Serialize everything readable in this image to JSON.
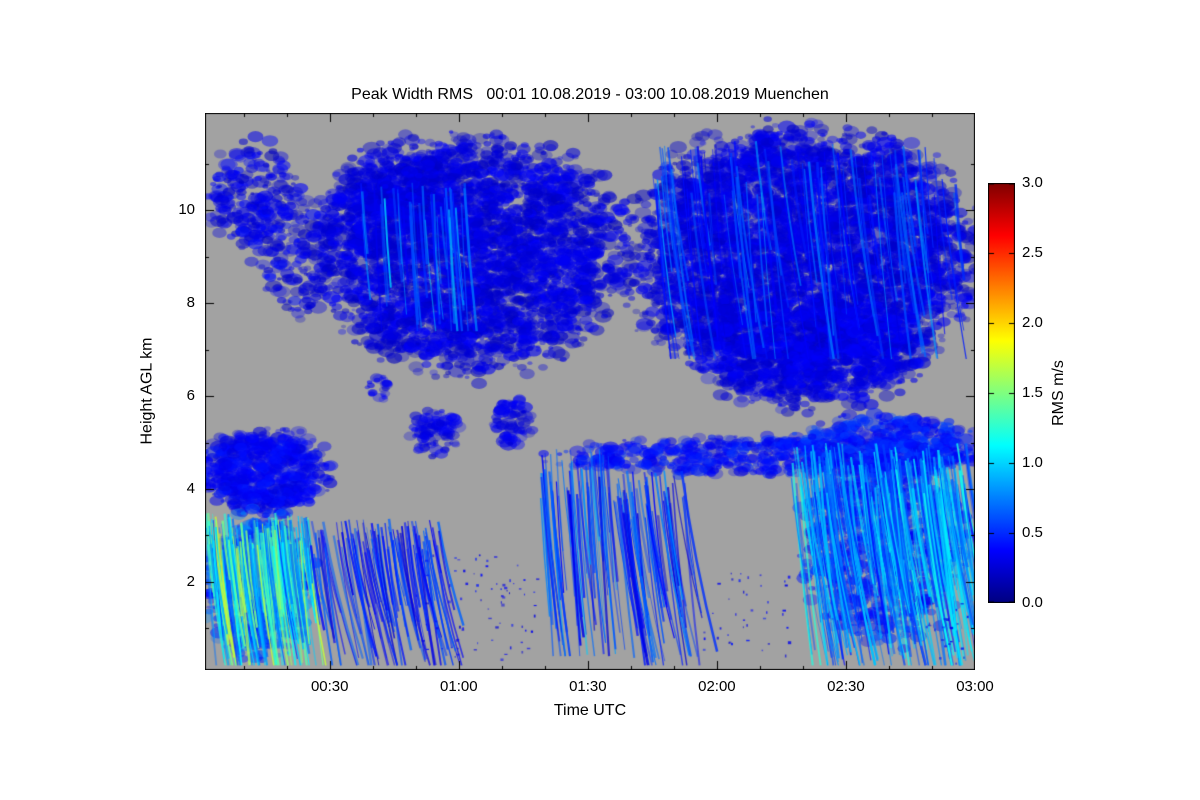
{
  "page": {
    "background": "#ffffff",
    "axis_color": "#000000"
  },
  "chart_data": {
    "type": "heatmap",
    "title": "Peak Width RMS   00:01 10.08.2019 - 03:00 10.08.2019 Muenchen",
    "xlabel": "Time UTC",
    "ylabel": "Height AGL km",
    "x_range_minutes": [
      1,
      180
    ],
    "x_ticks": [
      {
        "t": 30,
        "label": "00:30"
      },
      {
        "t": 60,
        "label": "01:00"
      },
      {
        "t": 90,
        "label": "01:30"
      },
      {
        "t": 120,
        "label": "02:00"
      },
      {
        "t": 150,
        "label": "02:30"
      },
      {
        "t": 180,
        "label": "03:00"
      }
    ],
    "y_range_km": [
      0.1,
      12.1
    ],
    "y_ticks": [
      {
        "h": 2,
        "label": "2"
      },
      {
        "h": 4,
        "label": "4"
      },
      {
        "h": 6,
        "label": "6"
      },
      {
        "h": 8,
        "label": "8"
      },
      {
        "h": 10,
        "label": "10"
      }
    ],
    "no_data_color": "#a2a2a2",
    "colorbar": {
      "label": "RMS m/s",
      "range": [
        0.0,
        3.0
      ],
      "ticks": [
        {
          "v": 0.0,
          "label": "0.0"
        },
        {
          "v": 0.5,
          "label": "0.5"
        },
        {
          "v": 1.0,
          "label": "1.0"
        },
        {
          "v": 1.5,
          "label": "1.5"
        },
        {
          "v": 2.0,
          "label": "2.0"
        },
        {
          "v": 2.5,
          "label": "2.5"
        },
        {
          "v": 3.0,
          "label": "3.0"
        }
      ],
      "colormap_stops": [
        {
          "pos": 0.0,
          "color": "#000080"
        },
        {
          "pos": 0.125,
          "color": "#0000ff"
        },
        {
          "pos": 0.375,
          "color": "#00ffff"
        },
        {
          "pos": 0.625,
          "color": "#ffff00"
        },
        {
          "pos": 0.875,
          "color": "#ff0000"
        },
        {
          "pos": 1.0,
          "color": "#800000"
        }
      ]
    },
    "features": [
      {
        "name": "upper-left-patches",
        "style": "blob",
        "t": [
          2,
          22
        ],
        "h": [
          9.2,
          11.5
        ],
        "value": 0.3,
        "spread": 0.12,
        "density": 0.55
      },
      {
        "name": "upper-left-lower-patches",
        "style": "blob",
        "t": [
          13,
          31
        ],
        "h": [
          7.7,
          10.4
        ],
        "value": 0.3,
        "spread": 0.12,
        "density": 0.4
      },
      {
        "name": "upper-mid-mass",
        "style": "blob",
        "t": [
          28,
          97
        ],
        "h": [
          6.6,
          11.5
        ],
        "value": 0.28,
        "spread": 0.1,
        "density": 1.15
      },
      {
        "name": "upper-mid-top-fill",
        "style": "blob",
        "t": [
          30,
          60
        ],
        "h": [
          9.0,
          11.4
        ],
        "value": 0.28,
        "spread": 0.1,
        "density": 0.7
      },
      {
        "name": "upper-mid-streak-texture",
        "style": "streaks",
        "t": [
          36,
          62
        ],
        "h": [
          7.4,
          10.6
        ],
        "value": 0.7,
        "spread": 0.25,
        "density": 0.5,
        "slant": 0.8
      },
      {
        "name": "upper-right-mass",
        "style": "blob",
        "t": [
          100,
          179
        ],
        "h": [
          6.3,
          11.7
        ],
        "value": 0.28,
        "spread": 0.1,
        "density": 1.25
      },
      {
        "name": "upper-right-lower-lobe",
        "style": "blob",
        "t": [
          116,
          168
        ],
        "h": [
          5.7,
          8.2
        ],
        "value": 0.3,
        "spread": 0.1,
        "density": 0.8
      },
      {
        "name": "upper-right-streak-texture",
        "style": "streaks",
        "t": [
          104,
          176
        ],
        "h": [
          6.8,
          11.5
        ],
        "value": 0.55,
        "spread": 0.2,
        "density": 0.45,
        "slant": 1.2
      },
      {
        "name": "mid-small-blob-1",
        "style": "blob",
        "t": [
          39,
          44
        ],
        "h": [
          5.9,
          6.5
        ],
        "value": 0.3,
        "spread": 0.08,
        "density": 0.9
      },
      {
        "name": "mid-small-blob-2",
        "style": "blob",
        "t": [
          49,
          60
        ],
        "h": [
          4.7,
          5.7
        ],
        "value": 0.3,
        "spread": 0.08,
        "density": 1.0
      },
      {
        "name": "mid-small-blob-3",
        "style": "blob",
        "t": [
          68,
          77
        ],
        "h": [
          4.9,
          6.0
        ],
        "value": 0.3,
        "spread": 0.08,
        "density": 0.85
      },
      {
        "name": "lowleft-cap",
        "style": "blob",
        "t": [
          1,
          29
        ],
        "h": [
          3.5,
          5.3
        ],
        "value": 0.35,
        "spread": 0.1,
        "density": 1.5
      },
      {
        "name": "lowleft-fill",
        "style": "blob",
        "t": [
          1,
          26
        ],
        "h": [
          0.4,
          3.5
        ],
        "value": 0.6,
        "spread": 0.25,
        "density": 1.0
      },
      {
        "name": "lowleft-bright-streaks",
        "style": "streaks",
        "t": [
          1,
          25
        ],
        "h": [
          0.2,
          3.5
        ],
        "value": 1.15,
        "spread": 0.35,
        "density": 2.0,
        "slant": 1.3
      },
      {
        "name": "lowmid-streaks-1",
        "style": "streaks",
        "t": [
          24,
          56
        ],
        "h": [
          0.2,
          3.4
        ],
        "value": 0.45,
        "spread": 0.15,
        "density": 0.9,
        "slant": 2.0
      },
      {
        "name": "lowmid-specks",
        "style": "specks",
        "t": [
          50,
          78
        ],
        "h": [
          0.3,
          2.6
        ],
        "value": 0.35,
        "spread": 0.1,
        "density": 0.3
      },
      {
        "name": "mid-band",
        "style": "blob",
        "t": [
          82,
          180
        ],
        "h": [
          4.3,
          5.1
        ],
        "value": 0.4,
        "spread": 0.12,
        "density": 1.0
      },
      {
        "name": "mid-streak-cluster-1",
        "style": "streaks",
        "t": [
          79,
          95
        ],
        "h": [
          0.4,
          4.9
        ],
        "value": 0.62,
        "spread": 0.3,
        "density": 1.2,
        "slant": 0.9
      },
      {
        "name": "mid-streak-cluster-2",
        "style": "streaks",
        "t": [
          95,
          113
        ],
        "h": [
          0.2,
          4.4
        ],
        "value": 0.5,
        "spread": 0.2,
        "density": 1.0,
        "slant": 1.6
      },
      {
        "name": "lowmid-specks-2",
        "style": "specks",
        "t": [
          115,
          137
        ],
        "h": [
          0.4,
          2.2
        ],
        "value": 0.35,
        "spread": 0.1,
        "density": 0.25
      },
      {
        "name": "right-band-thick",
        "style": "blob",
        "t": [
          138,
          180
        ],
        "h": [
          4.2,
          5.6
        ],
        "value": 0.45,
        "spread": 0.15,
        "density": 1.1
      },
      {
        "name": "lowright-fill",
        "style": "blob",
        "t": [
          140,
          177
        ],
        "h": [
          0.8,
          4.8
        ],
        "value": 0.45,
        "spread": 0.15,
        "density": 0.7
      },
      {
        "name": "lowright-streaks",
        "style": "streaks",
        "t": [
          137,
          178
        ],
        "h": [
          0.2,
          5.0
        ],
        "value": 0.8,
        "spread": 0.3,
        "density": 1.7,
        "slant": 1.6
      },
      {
        "name": "lowright-specks",
        "style": "specks",
        "t": [
          166,
          180
        ],
        "h": [
          0.2,
          1.6
        ],
        "value": 0.35,
        "spread": 0.1,
        "density": 0.3
      }
    ]
  }
}
